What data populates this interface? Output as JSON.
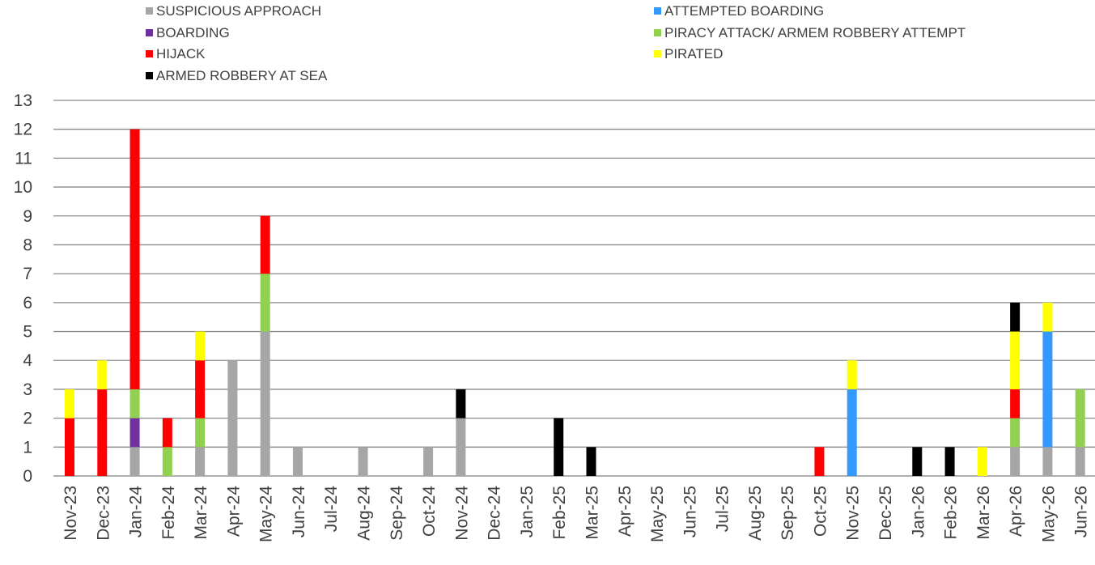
{
  "chart_data": {
    "type": "bar",
    "stacked": true,
    "ylim": [
      0,
      13
    ],
    "yticks": [
      0,
      1,
      2,
      3,
      4,
      5,
      6,
      7,
      8,
      9,
      10,
      11,
      12,
      13
    ],
    "grid": true,
    "legend_position": "top",
    "categories": [
      "Nov-23",
      "Dec-23",
      "Jan-24",
      "Feb-24",
      "Mar-24",
      "Apr-24",
      "May-24",
      "Jun-24",
      "Jul-24",
      "Aug-24",
      "Sep-24",
      "Oct-24",
      "Nov-24",
      "Dec-24",
      "Jan-25",
      "Feb-25",
      "Mar-25",
      "Apr-25",
      "May-25",
      "Jun-25",
      "Jul-25",
      "Aug-25",
      "Sep-25",
      "Oct-25",
      "Nov-25",
      "Dec-25",
      "Jan-26",
      "Feb-26",
      "Mar-26",
      "Apr-26",
      "May-26",
      "Jun-26"
    ],
    "series": [
      {
        "name": "SUSPICIOUS APPROACH",
        "color": "#A6A6A6",
        "values": [
          0,
          0,
          1,
          0,
          1,
          4,
          5,
          1,
          0,
          1,
          0,
          1,
          2,
          0,
          0,
          0,
          0,
          0,
          0,
          0,
          0,
          0,
          0,
          0,
          0,
          0,
          0,
          0,
          0,
          1,
          1,
          1
        ]
      },
      {
        "name": "ATTEMPTED BOARDING",
        "color": "#3399FF",
        "values": [
          0,
          0,
          0,
          0,
          0,
          0,
          0,
          0,
          0,
          0,
          0,
          0,
          0,
          0,
          0,
          0,
          0,
          0,
          0,
          0,
          0,
          0,
          0,
          0,
          3,
          0,
          0,
          0,
          0,
          0,
          4,
          0
        ]
      },
      {
        "name": "BOARDING",
        "color": "#7030A0",
        "values": [
          0,
          0,
          1,
          0,
          0,
          0,
          0,
          0,
          0,
          0,
          0,
          0,
          0,
          0,
          0,
          0,
          0,
          0,
          0,
          0,
          0,
          0,
          0,
          0,
          0,
          0,
          0,
          0,
          0,
          0,
          0,
          0
        ]
      },
      {
        "name": "PIRACY ATTACK/ ARMEM ROBBERY ATTEMPT",
        "color": "#92D050",
        "values": [
          0,
          0,
          1,
          1,
          1,
          0,
          2,
          0,
          0,
          0,
          0,
          0,
          0,
          0,
          0,
          0,
          0,
          0,
          0,
          0,
          0,
          0,
          0,
          0,
          0,
          0,
          0,
          0,
          0,
          1,
          0,
          2
        ]
      },
      {
        "name": "HIJACK",
        "color": "#FF0000",
        "values": [
          2,
          3,
          9,
          1,
          2,
          0,
          2,
          0,
          0,
          0,
          0,
          0,
          0,
          0,
          0,
          0,
          0,
          0,
          0,
          0,
          0,
          0,
          0,
          1,
          0,
          0,
          0,
          0,
          0,
          1,
          0,
          0
        ]
      },
      {
        "name": "PIRATED",
        "color": "#FFFF00",
        "values": [
          1,
          1,
          0,
          0,
          1,
          0,
          0,
          0,
          0,
          0,
          0,
          0,
          0,
          0,
          0,
          0,
          0,
          0,
          0,
          0,
          0,
          0,
          0,
          0,
          1,
          0,
          0,
          0,
          1,
          2,
          1,
          0
        ]
      },
      {
        "name": "ARMED ROBBERY AT SEA",
        "color": "#000000",
        "values": [
          0,
          0,
          0,
          0,
          0,
          0,
          0,
          0,
          0,
          0,
          0,
          0,
          1,
          0,
          0,
          2,
          1,
          0,
          0,
          0,
          0,
          0,
          0,
          0,
          0,
          0,
          1,
          1,
          0,
          1,
          0,
          0
        ]
      }
    ],
    "legend_order": [
      "SUSPICIOUS APPROACH",
      "ATTEMPTED BOARDING",
      "BOARDING",
      "PIRACY ATTACK/ ARMEM ROBBERY ATTEMPT",
      "HIJACK",
      "PIRATED",
      "ARMED ROBBERY AT SEA"
    ],
    "title": "",
    "xlabel": "",
    "ylabel": ""
  }
}
